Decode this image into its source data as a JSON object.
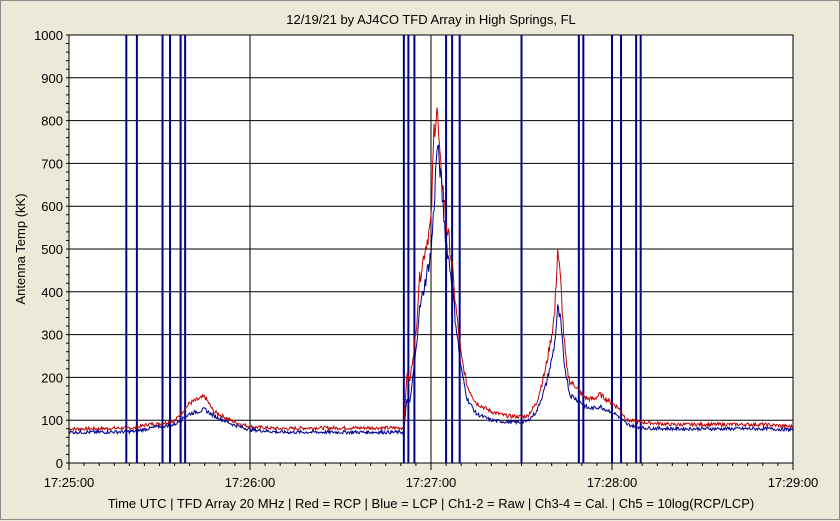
{
  "chart_data": {
    "type": "line",
    "title": "12/19/21  by  AJ4CO TFD Array  in  High Springs, FL",
    "ylabel": "Antenna Temp (kK)",
    "xlabel": "",
    "footer": "Time UTC | TFD Array 20 MHz | Red = RCP | Blue = LCP | Ch1-2 = Raw | Ch3-4 = Cal. | Ch5 = 10log(RCP/LCP)",
    "ylim": [
      0,
      1000
    ],
    "xlim_seconds": [
      0,
      240
    ],
    "y_ticks": [
      0,
      100,
      200,
      300,
      400,
      500,
      600,
      700,
      800,
      900,
      1000
    ],
    "x_ticks": [
      {
        "t": 0,
        "label": "17:25:00"
      },
      {
        "t": 60,
        "label": "17:26:00"
      },
      {
        "t": 120,
        "label": "17:27:00"
      },
      {
        "t": 180,
        "label": "17:28:00"
      },
      {
        "t": 240,
        "label": "17:29:00"
      }
    ],
    "grid": true,
    "series": [
      {
        "name": "RCP",
        "color": "#c00000",
        "points": [
          [
            0,
            80
          ],
          [
            10,
            80
          ],
          [
            18,
            82
          ],
          [
            22,
            82
          ],
          [
            26,
            90
          ],
          [
            30,
            92
          ],
          [
            35,
            98
          ],
          [
            40,
            140
          ],
          [
            45,
            155
          ],
          [
            48,
            120
          ],
          [
            55,
            95
          ],
          [
            60,
            85
          ],
          [
            70,
            80
          ],
          [
            80,
            82
          ],
          [
            90,
            82
          ],
          [
            100,
            82
          ],
          [
            111,
            82
          ],
          [
            112,
            210
          ],
          [
            113,
            190
          ],
          [
            114,
            250
          ],
          [
            115,
            300
          ],
          [
            116,
            420
          ],
          [
            118,
            500
          ],
          [
            120,
            560
          ],
          [
            121,
            780
          ],
          [
            122,
            830
          ],
          [
            123,
            700
          ],
          [
            124,
            640
          ],
          [
            125,
            560
          ],
          [
            126,
            520
          ],
          [
            127,
            460
          ],
          [
            128,
            380
          ],
          [
            130,
            250
          ],
          [
            132,
            180
          ],
          [
            135,
            140
          ],
          [
            140,
            120
          ],
          [
            145,
            110
          ],
          [
            150,
            108
          ],
          [
            152,
            110
          ],
          [
            155,
            140
          ],
          [
            158,
            220
          ],
          [
            160,
            300
          ],
          [
            161,
            350
          ],
          [
            162,
            500
          ],
          [
            163,
            420
          ],
          [
            164,
            300
          ],
          [
            165,
            220
          ],
          [
            166,
            190
          ],
          [
            168,
            180
          ],
          [
            170,
            160
          ],
          [
            172,
            150
          ],
          [
            174,
            150
          ],
          [
            176,
            160
          ],
          [
            178,
            150
          ],
          [
            180,
            140
          ],
          [
            182,
            130
          ],
          [
            185,
            100
          ],
          [
            190,
            95
          ],
          [
            200,
            90
          ],
          [
            210,
            90
          ],
          [
            220,
            90
          ],
          [
            230,
            90
          ],
          [
            240,
            85
          ]
        ]
      },
      {
        "name": "LCP",
        "color": "#00008b",
        "points": [
          [
            0,
            72
          ],
          [
            10,
            72
          ],
          [
            18,
            73
          ],
          [
            22,
            74
          ],
          [
            26,
            80
          ],
          [
            30,
            85
          ],
          [
            35,
            90
          ],
          [
            40,
            115
          ],
          [
            45,
            125
          ],
          [
            48,
            110
          ],
          [
            55,
            88
          ],
          [
            60,
            78
          ],
          [
            70,
            72
          ],
          [
            80,
            72
          ],
          [
            90,
            72
          ],
          [
            100,
            72
          ],
          [
            111,
            72
          ],
          [
            112,
            150
          ],
          [
            113,
            140
          ],
          [
            114,
            200
          ],
          [
            115,
            260
          ],
          [
            116,
            350
          ],
          [
            118,
            420
          ],
          [
            120,
            490
          ],
          [
            121,
            600
          ],
          [
            122,
            740
          ],
          [
            123,
            690
          ],
          [
            124,
            600
          ],
          [
            125,
            520
          ],
          [
            126,
            470
          ],
          [
            127,
            420
          ],
          [
            128,
            340
          ],
          [
            130,
            220
          ],
          [
            132,
            150
          ],
          [
            135,
            115
          ],
          [
            140,
            100
          ],
          [
            145,
            96
          ],
          [
            150,
            95
          ],
          [
            152,
            98
          ],
          [
            155,
            120
          ],
          [
            158,
            180
          ],
          [
            160,
            240
          ],
          [
            161,
            280
          ],
          [
            162,
            360
          ],
          [
            163,
            330
          ],
          [
            164,
            240
          ],
          [
            165,
            200
          ],
          [
            166,
            160
          ],
          [
            168,
            150
          ],
          [
            170,
            140
          ],
          [
            172,
            128
          ],
          [
            174,
            128
          ],
          [
            176,
            132
          ],
          [
            178,
            125
          ],
          [
            180,
            120
          ],
          [
            182,
            110
          ],
          [
            185,
            90
          ],
          [
            190,
            82
          ],
          [
            200,
            80
          ],
          [
            210,
            80
          ],
          [
            220,
            80
          ],
          [
            230,
            80
          ],
          [
            240,
            78
          ]
        ]
      }
    ],
    "spikes_seconds": [
      19,
      22.5,
      31,
      33.5,
      37,
      38.5,
      111,
      112.5,
      114.5,
      125,
      127,
      129.5,
      150,
      169,
      170.5,
      180,
      183,
      188,
      189.5
    ]
  }
}
